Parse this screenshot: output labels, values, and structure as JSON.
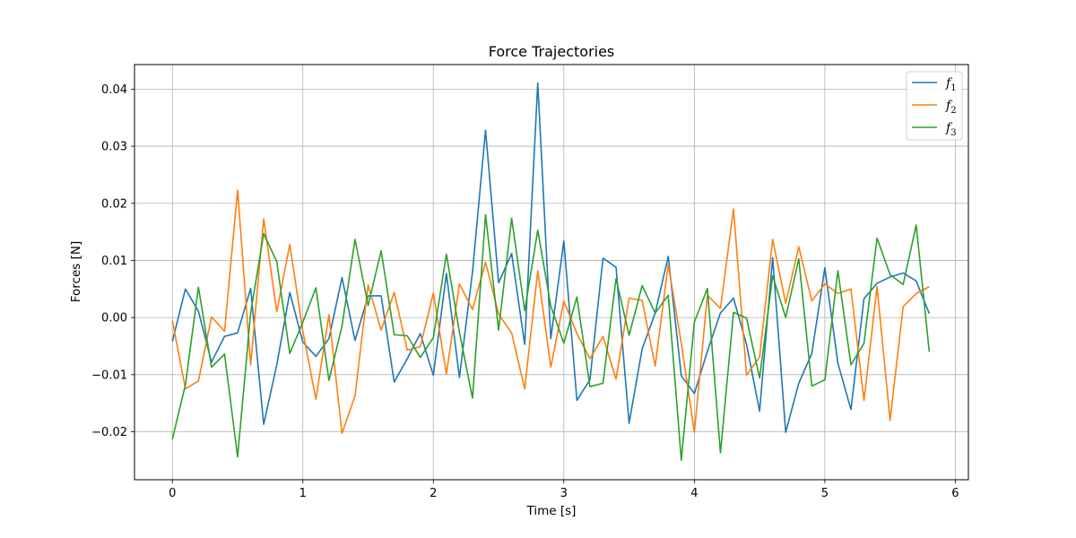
{
  "chart_data": {
    "type": "line",
    "title": "Force Trajectories",
    "xlabel": "Time [s]",
    "ylabel": "Forces [N]",
    "xlim": [
      -0.29,
      6.1
    ],
    "ylim": [
      -0.0284,
      0.0443
    ],
    "xticks": [
      0,
      1,
      2,
      3,
      4,
      5,
      6
    ],
    "xtick_labels": [
      "0",
      "1",
      "2",
      "3",
      "4",
      "5",
      "6"
    ],
    "yticks": [
      -0.02,
      -0.01,
      0.0,
      0.01,
      0.02,
      0.03,
      0.04
    ],
    "ytick_labels": [
      "−0.02",
      "−0.01",
      "0.00",
      "0.01",
      "0.02",
      "0.03",
      "0.04"
    ],
    "grid": true,
    "legend_position": "top-right",
    "x": [
      0.0,
      0.1,
      0.2,
      0.3,
      0.4,
      0.5,
      0.6,
      0.7,
      0.8,
      0.9,
      1.0,
      1.1,
      1.2,
      1.3,
      1.4,
      1.5,
      1.6,
      1.7,
      1.8,
      1.9,
      2.0,
      2.1,
      2.2,
      2.3,
      2.4,
      2.5,
      2.6,
      2.7,
      2.8,
      2.9,
      3.0,
      3.1,
      3.2,
      3.3,
      3.4,
      3.5,
      3.6,
      3.7,
      3.8,
      3.9,
      4.0,
      4.1,
      4.2,
      4.3,
      4.4,
      4.5,
      4.6,
      4.7,
      4.8,
      4.9,
      5.0,
      5.1,
      5.2,
      5.3,
      5.4,
      5.5,
      5.6,
      5.7,
      5.8
    ],
    "series": [
      {
        "name": "f",
        "subscript": "1",
        "color": "#1f77b4",
        "values": [
          -0.0042,
          0.005,
          0.0011,
          -0.0078,
          -0.0033,
          -0.0027,
          0.0051,
          -0.0187,
          -0.0083,
          0.0044,
          -0.0043,
          -0.0068,
          -0.0037,
          0.007,
          -0.004,
          0.0038,
          0.0038,
          -0.0113,
          -0.0072,
          -0.0028,
          -0.0101,
          0.0077,
          -0.0105,
          0.008,
          0.0328,
          0.0061,
          0.0112,
          -0.0047,
          0.0411,
          -0.0037,
          0.0134,
          -0.0145,
          -0.0109,
          0.0104,
          0.0088,
          -0.0185,
          -0.0055,
          0.0008,
          0.0107,
          -0.0102,
          -0.0133,
          -0.0059,
          0.0008,
          0.0034,
          -0.0047,
          -0.0164,
          0.0105,
          -0.0201,
          -0.0115,
          -0.0063,
          0.0087,
          -0.008,
          -0.0161,
          0.0033,
          0.006,
          0.0071,
          0.0078,
          0.0064,
          0.0007
        ]
      },
      {
        "name": "f",
        "subscript": "2",
        "color": "#ff7f0e",
        "values": [
          -0.0005,
          -0.0125,
          -0.0111,
          0.0001,
          -0.0024,
          0.0223,
          -0.0083,
          0.0173,
          0.001,
          0.0128,
          -0.0024,
          -0.0143,
          0.0005,
          -0.0203,
          -0.0137,
          0.0057,
          -0.0022,
          0.0044,
          -0.0057,
          -0.0051,
          0.0043,
          -0.0099,
          0.0059,
          0.0014,
          0.0097,
          0.0006,
          -0.0027,
          -0.0125,
          0.0082,
          -0.0087,
          0.0029,
          -0.0028,
          -0.0072,
          -0.0033,
          -0.0108,
          0.0034,
          0.003,
          -0.0085,
          0.0093,
          -0.0045,
          -0.0201,
          0.0039,
          0.0016,
          0.019,
          -0.0101,
          -0.0069,
          0.0137,
          0.0025,
          0.0124,
          0.0029,
          0.0059,
          0.0042,
          0.005,
          -0.0145,
          0.0054,
          -0.018,
          0.0019,
          0.0042,
          0.0054
        ]
      },
      {
        "name": "f",
        "subscript": "3",
        "color": "#2ca02c",
        "values": [
          -0.0213,
          -0.0118,
          0.0053,
          -0.0087,
          -0.0064,
          -0.0244,
          0.0008,
          0.0147,
          0.0098,
          -0.0063,
          -0.0008,
          0.0052,
          -0.011,
          -0.0015,
          0.0137,
          0.0021,
          0.0117,
          -0.003,
          -0.0032,
          -0.007,
          -0.0035,
          0.0111,
          -0.0026,
          -0.0141,
          0.018,
          -0.0022,
          0.0174,
          0.0012,
          0.0153,
          0.002,
          -0.0045,
          0.0036,
          -0.0121,
          -0.0115,
          0.0068,
          -0.0031,
          0.0056,
          0.0008,
          0.0039,
          -0.025,
          -0.0008,
          0.0051,
          -0.0237,
          0.0009,
          -0.0001,
          -0.0106,
          0.0073,
          0.0,
          0.0103,
          -0.012,
          -0.0109,
          0.0082,
          -0.0083,
          -0.0045,
          0.0139,
          0.0075,
          0.0058,
          0.0162,
          -0.006
        ]
      }
    ]
  }
}
